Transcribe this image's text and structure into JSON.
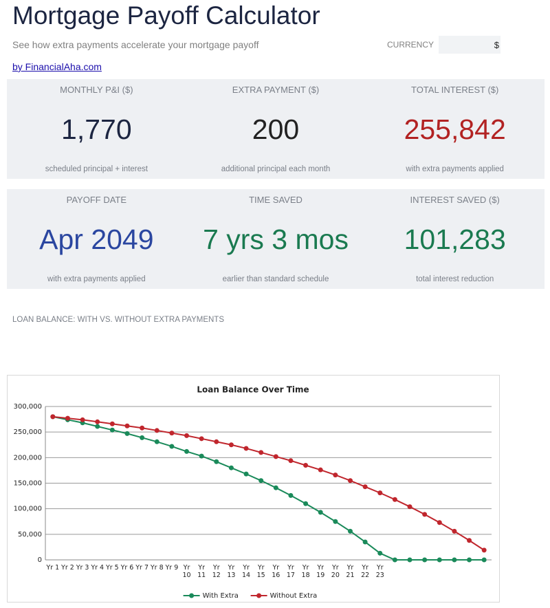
{
  "header": {
    "title": "Mortgage Payoff Calculator",
    "subtitle": "See how extra payments accelerate your mortgage payoff",
    "currency_label": "CURRENCY",
    "currency_value": "$",
    "link": "by FinancialAha.com"
  },
  "cards": [
    {
      "label": "MONTHLY P&I ($)",
      "value": "1,770",
      "note": "scheduled principal + interest"
    },
    {
      "label": "EXTRA PAYMENT ($)",
      "value": "200",
      "note": "additional principal each month"
    },
    {
      "label": "TOTAL INTEREST ($)",
      "value": "255,842",
      "note": "with extra payments applied"
    },
    {
      "label": "PAYOFF DATE",
      "value": "Apr 2049",
      "note": "with extra payments applied"
    },
    {
      "label": "TIME SAVED",
      "value": "7 yrs 3 mos",
      "note": "earlier than standard schedule"
    },
    {
      "label": "INTEREST SAVED ($)",
      "value": "101,283",
      "note": "total interest reduction"
    }
  ],
  "section_label": "LOAN BALANCE: WITH VS. WITHOUT EXTRA PAYMENTS",
  "chart_data": {
    "type": "line",
    "title": "Loan Balance Over Time",
    "categories": [
      "Yr 1",
      "Yr 2",
      "Yr 3",
      "Yr 4",
      "Yr 5",
      "Yr 6",
      "Yr 7",
      "Yr 8",
      "Yr 9",
      "Yr 10",
      "Yr 11",
      "Yr 12",
      "Yr 13",
      "Yr 14",
      "Yr 15",
      "Yr 16",
      "Yr 17",
      "Yr 18",
      "Yr 19",
      "Yr 20",
      "Yr 21",
      "Yr 22",
      "Yr 23",
      null,
      null,
      null,
      null,
      null,
      null,
      null
    ],
    "series": [
      {
        "name": "With Extra",
        "color": "#1a8a5a",
        "values": [
          280000,
          274000,
          268000,
          261000,
          254000,
          247000,
          239000,
          231000,
          222000,
          212000,
          203000,
          192000,
          180000,
          168000,
          155000,
          141000,
          126000,
          110000,
          93000,
          75000,
          56000,
          35000,
          13000,
          0,
          0,
          0,
          0,
          0,
          0,
          0
        ]
      },
      {
        "name": "Without Extra",
        "color": "#c0262d",
        "values": [
          280000,
          277000,
          274000,
          270000,
          266000,
          262000,
          258000,
          253000,
          248000,
          243000,
          237000,
          231000,
          225000,
          218000,
          210000,
          202000,
          194000,
          185000,
          176000,
          166000,
          155000,
          143000,
          131000,
          118000,
          104000,
          89000,
          73000,
          56000,
          38000,
          19000
        ]
      }
    ],
    "ylim": [
      0,
      300000
    ],
    "yticks": [
      0,
      {
        "value": 50000,
        "label": "50,000"
      },
      {
        "value": 100000,
        "label": "100,000"
      },
      {
        "value": 150000,
        "label": "150,000"
      },
      {
        "value": 200000,
        "label": "200,000"
      },
      {
        "value": 250000,
        "label": "250,000"
      },
      {
        "value": 300000,
        "label": "300,000"
      }
    ],
    "grid": true,
    "legend": "bottom"
  }
}
